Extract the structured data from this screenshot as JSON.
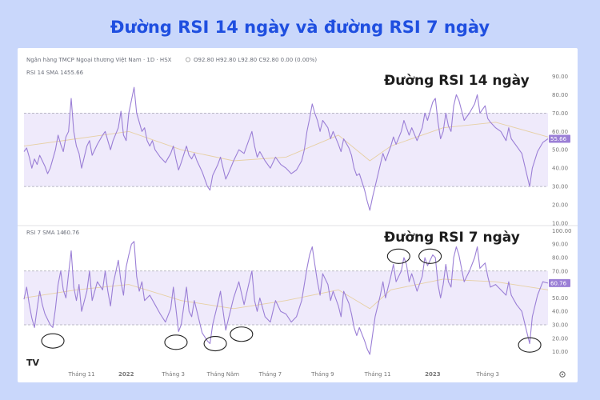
{
  "title": "Đường RSI 14 ngày và đường RSI 7 ngày",
  "header": {
    "symbol": "Ngân hàng TMCP Ngoại thương Việt Nam · 1D · HSX",
    "ohlc": "O92.80 H92.80 L92.80 C92.80 0.00 (0.00%)",
    "settings_icon": "gear-icon",
    "logo": "TV"
  },
  "accent": "#9b7fd6",
  "band_fill": "#efeafb",
  "chart_data": [
    {
      "type": "line",
      "panel_label": "RSI 14 SMA 14",
      "current_value_label": "55.66",
      "annotation": "Đường RSI 14 ngày",
      "ylim": [
        10,
        95
      ],
      "yticks": [
        "90.00",
        "80.00",
        "70.00",
        "60.00",
        "50.00",
        "40.00",
        "30.00",
        "20.00",
        "10.00"
      ],
      "band": [
        30,
        70
      ],
      "points": [
        [
          0,
          49
        ],
        [
          0.5,
          51
        ],
        [
          1,
          46
        ],
        [
          1.5,
          40
        ],
        [
          2,
          45
        ],
        [
          2.5,
          42
        ],
        [
          3,
          47
        ],
        [
          4,
          41
        ],
        [
          4.5,
          37
        ],
        [
          5,
          40
        ],
        [
          6,
          50
        ],
        [
          6.5,
          58
        ],
        [
          7,
          53
        ],
        [
          7.5,
          49
        ],
        [
          8,
          57
        ],
        [
          8.5,
          60
        ],
        [
          9,
          78
        ],
        [
          9.5,
          60
        ],
        [
          10,
          52
        ],
        [
          10.5,
          48
        ],
        [
          11,
          40
        ],
        [
          12,
          52
        ],
        [
          12.5,
          55
        ],
        [
          13,
          47
        ],
        [
          14,
          53
        ],
        [
          15,
          58
        ],
        [
          15.5,
          60
        ],
        [
          16,
          55
        ],
        [
          16.5,
          50
        ],
        [
          17,
          55
        ],
        [
          18,
          62
        ],
        [
          18.5,
          71
        ],
        [
          19,
          58
        ],
        [
          19.5,
          55
        ],
        [
          20,
          70
        ],
        [
          20.5,
          77
        ],
        [
          21,
          84
        ],
        [
          21.5,
          70
        ],
        [
          22,
          65
        ],
        [
          22.5,
          60
        ],
        [
          23,
          62
        ],
        [
          23.5,
          55
        ],
        [
          24,
          52
        ],
        [
          24.5,
          55
        ],
        [
          25,
          50
        ],
        [
          26,
          46
        ],
        [
          27,
          43
        ],
        [
          28,
          48
        ],
        [
          28.5,
          52
        ],
        [
          29,
          45
        ],
        [
          29.5,
          39
        ],
        [
          30,
          43
        ],
        [
          31,
          52
        ],
        [
          31.5,
          47
        ],
        [
          32,
          45
        ],
        [
          32.5,
          48
        ],
        [
          33,
          44
        ],
        [
          34,
          38
        ],
        [
          35,
          30
        ],
        [
          35.5,
          28
        ],
        [
          36,
          36
        ],
        [
          37,
          42
        ],
        [
          37.5,
          46
        ],
        [
          38,
          40
        ],
        [
          38.5,
          34
        ],
        [
          39,
          37
        ],
        [
          40,
          44
        ],
        [
          41,
          50
        ],
        [
          42,
          48
        ],
        [
          43,
          56
        ],
        [
          43.5,
          60
        ],
        [
          44,
          52
        ],
        [
          44.5,
          46
        ],
        [
          45,
          49
        ],
        [
          46,
          44
        ],
        [
          47,
          40
        ],
        [
          48,
          46
        ],
        [
          49,
          42
        ],
        [
          50,
          40
        ],
        [
          51,
          37
        ],
        [
          52,
          39
        ],
        [
          53,
          44
        ],
        [
          53.5,
          50
        ],
        [
          54,
          60
        ],
        [
          54.5,
          67
        ],
        [
          55,
          75
        ],
        [
          55.5,
          70
        ],
        [
          56,
          66
        ],
        [
          56.5,
          60
        ],
        [
          57,
          66
        ],
        [
          58,
          62
        ],
        [
          58.5,
          56
        ],
        [
          59,
          60
        ],
        [
          60,
          53
        ],
        [
          60.5,
          49
        ],
        [
          61,
          56
        ],
        [
          62,
          51
        ],
        [
          62.5,
          47
        ],
        [
          63,
          40
        ],
        [
          63.5,
          36
        ],
        [
          64,
          37
        ],
        [
          65,
          28
        ],
        [
          65.5,
          22
        ],
        [
          66,
          17
        ],
        [
          66.5,
          24
        ],
        [
          67,
          30
        ],
        [
          68,
          42
        ],
        [
          68.5,
          48
        ],
        [
          69,
          44
        ],
        [
          70,
          52
        ],
        [
          70.5,
          57
        ],
        [
          71,
          53
        ],
        [
          72,
          60
        ],
        [
          72.5,
          66
        ],
        [
          73,
          62
        ],
        [
          73.5,
          58
        ],
        [
          74,
          62
        ],
        [
          75,
          55
        ],
        [
          76,
          62
        ],
        [
          76.5,
          70
        ],
        [
          77,
          66
        ],
        [
          78,
          76
        ],
        [
          78.5,
          78
        ],
        [
          79,
          65
        ],
        [
          79.5,
          56
        ],
        [
          80,
          60
        ],
        [
          80.5,
          70
        ],
        [
          81,
          63
        ],
        [
          81.5,
          60
        ],
        [
          82,
          74
        ],
        [
          82.5,
          80
        ],
        [
          83,
          77
        ],
        [
          84,
          66
        ],
        [
          85,
          70
        ],
        [
          86,
          75
        ],
        [
          86.5,
          80
        ],
        [
          87,
          70
        ],
        [
          88,
          74
        ],
        [
          88.5,
          67
        ],
        [
          89,
          65
        ],
        [
          90,
          62
        ],
        [
          91,
          60
        ],
        [
          92,
          55
        ],
        [
          92.5,
          62
        ],
        [
          93,
          56
        ],
        [
          94,
          52
        ],
        [
          95,
          48
        ],
        [
          96,
          36
        ],
        [
          96.5,
          30
        ],
        [
          97,
          40
        ],
        [
          98,
          49
        ],
        [
          99,
          54
        ],
        [
          100,
          56
        ]
      ],
      "sma": [
        [
          0,
          52
        ],
        [
          10,
          56
        ],
        [
          20,
          60
        ],
        [
          30,
          50
        ],
        [
          40,
          44
        ],
        [
          50,
          46
        ],
        [
          60,
          58
        ],
        [
          66,
          44
        ],
        [
          70,
          52
        ],
        [
          80,
          62
        ],
        [
          90,
          65
        ],
        [
          100,
          57
        ]
      ]
    },
    {
      "type": "line",
      "panel_label": "RSI 7 SMA 14",
      "current_value_label": "60.76",
      "annotation": "Đường RSI 7 ngày",
      "ylim": [
        5,
        102
      ],
      "yticks": [
        "100.00",
        "90.00",
        "80.00",
        "70.00",
        "60.00",
        "50.00",
        "40.00",
        "30.00",
        "20.00",
        "10.00"
      ],
      "band": [
        30,
        70
      ],
      "points": [
        [
          0,
          49
        ],
        [
          0.5,
          58
        ],
        [
          1,
          45
        ],
        [
          1.5,
          35
        ],
        [
          2,
          28
        ],
        [
          2.5,
          42
        ],
        [
          3,
          55
        ],
        [
          3.5,
          45
        ],
        [
          4,
          38
        ],
        [
          5,
          30
        ],
        [
          5.5,
          28
        ],
        [
          6,
          42
        ],
        [
          6.5,
          60
        ],
        [
          7,
          70
        ],
        [
          7.5,
          56
        ],
        [
          8,
          50
        ],
        [
          8.5,
          68
        ],
        [
          9,
          85
        ],
        [
          9.5,
          58
        ],
        [
          10,
          48
        ],
        [
          10.5,
          60
        ],
        [
          11,
          40
        ],
        [
          12,
          55
        ],
        [
          12.5,
          70
        ],
        [
          13,
          48
        ],
        [
          14,
          62
        ],
        [
          15,
          56
        ],
        [
          15.5,
          70
        ],
        [
          16,
          55
        ],
        [
          16.5,
          44
        ],
        [
          17,
          60
        ],
        [
          18,
          78
        ],
        [
          18.5,
          62
        ],
        [
          19,
          52
        ],
        [
          19.5,
          73
        ],
        [
          20,
          82
        ],
        [
          20.5,
          90
        ],
        [
          21,
          92
        ],
        [
          21.5,
          66
        ],
        [
          22,
          55
        ],
        [
          22.5,
          62
        ],
        [
          23,
          48
        ],
        [
          24,
          52
        ],
        [
          25,
          45
        ],
        [
          26,
          38
        ],
        [
          27,
          32
        ],
        [
          28,
          42
        ],
        [
          28.5,
          58
        ],
        [
          29,
          42
        ],
        [
          29.5,
          25
        ],
        [
          30,
          30
        ],
        [
          31,
          58
        ],
        [
          31.5,
          40
        ],
        [
          32,
          36
        ],
        [
          32.5,
          48
        ],
        [
          33,
          40
        ],
        [
          34,
          24
        ],
        [
          35,
          18
        ],
        [
          35.5,
          16
        ],
        [
          36,
          30
        ],
        [
          37,
          46
        ],
        [
          37.5,
          55
        ],
        [
          38,
          40
        ],
        [
          38.5,
          26
        ],
        [
          39,
          34
        ],
        [
          40,
          50
        ],
        [
          41,
          62
        ],
        [
          42,
          45
        ],
        [
          43,
          62
        ],
        [
          43.5,
          70
        ],
        [
          44,
          48
        ],
        [
          44.5,
          40
        ],
        [
          45,
          50
        ],
        [
          46,
          36
        ],
        [
          47,
          32
        ],
        [
          48,
          48
        ],
        [
          49,
          40
        ],
        [
          50,
          38
        ],
        [
          51,
          32
        ],
        [
          52,
          36
        ],
        [
          53,
          48
        ],
        [
          53.5,
          60
        ],
        [
          54,
          72
        ],
        [
          54.5,
          82
        ],
        [
          55,
          88
        ],
        [
          55.5,
          75
        ],
        [
          56,
          62
        ],
        [
          56.5,
          52
        ],
        [
          57,
          68
        ],
        [
          58,
          60
        ],
        [
          58.5,
          48
        ],
        [
          59,
          55
        ],
        [
          60,
          44
        ],
        [
          60.5,
          36
        ],
        [
          61,
          55
        ],
        [
          62,
          46
        ],
        [
          62.5,
          38
        ],
        [
          63,
          28
        ],
        [
          63.5,
          22
        ],
        [
          64,
          28
        ],
        [
          65,
          18
        ],
        [
          65.5,
          12
        ],
        [
          66,
          8
        ],
        [
          66.5,
          22
        ],
        [
          67,
          36
        ],
        [
          68,
          52
        ],
        [
          68.5,
          62
        ],
        [
          69,
          50
        ],
        [
          70,
          66
        ],
        [
          70.5,
          75
        ],
        [
          71,
          62
        ],
        [
          72,
          70
        ],
        [
          72.5,
          80
        ],
        [
          73,
          75
        ],
        [
          73.5,
          62
        ],
        [
          74,
          68
        ],
        [
          75,
          55
        ],
        [
          76,
          66
        ],
        [
          76.5,
          80
        ],
        [
          77,
          74
        ],
        [
          78,
          82
        ],
        [
          78.5,
          80
        ],
        [
          79,
          60
        ],
        [
          79.5,
          50
        ],
        [
          80,
          60
        ],
        [
          80.5,
          75
        ],
        [
          81,
          62
        ],
        [
          81.5,
          58
        ],
        [
          82,
          80
        ],
        [
          82.5,
          88
        ],
        [
          83,
          82
        ],
        [
          84,
          62
        ],
        [
          85,
          70
        ],
        [
          86,
          80
        ],
        [
          86.5,
          88
        ],
        [
          87,
          72
        ],
        [
          88,
          76
        ],
        [
          88.5,
          66
        ],
        [
          89,
          58
        ],
        [
          90,
          60
        ],
        [
          91,
          56
        ],
        [
          92,
          52
        ],
        [
          92.5,
          62
        ],
        [
          93,
          52
        ],
        [
          94,
          45
        ],
        [
          95,
          40
        ],
        [
          96,
          24
        ],
        [
          96.5,
          16
        ],
        [
          97,
          36
        ],
        [
          98,
          52
        ],
        [
          99,
          62
        ],
        [
          100,
          61
        ]
      ],
      "sma": [
        [
          0,
          50
        ],
        [
          10,
          56
        ],
        [
          20,
          60
        ],
        [
          30,
          48
        ],
        [
          40,
          42
        ],
        [
          50,
          48
        ],
        [
          60,
          56
        ],
        [
          66,
          42
        ],
        [
          70,
          56
        ],
        [
          80,
          64
        ],
        [
          90,
          62
        ],
        [
          100,
          56
        ]
      ]
    }
  ],
  "x_axis": {
    "ticks": [
      {
        "t": 11.0,
        "label": "Tháng 11",
        "bold": false
      },
      {
        "t": 19.5,
        "label": "2022",
        "bold": true
      },
      {
        "t": 28.5,
        "label": "Tháng 3",
        "bold": false
      },
      {
        "t": 38.0,
        "label": "Tháng Năm",
        "bold": false
      },
      {
        "t": 47.0,
        "label": "Tháng 7",
        "bold": false
      },
      {
        "t": 57.0,
        "label": "Tháng 9",
        "bold": false
      },
      {
        "t": 67.5,
        "label": "Tháng 11",
        "bold": false
      },
      {
        "t": 78.0,
        "label": "2023",
        "bold": true
      },
      {
        "t": 88.5,
        "label": "Tháng 3",
        "bold": false
      }
    ]
  },
  "highlights": [
    {
      "t": 5.5,
      "v": 18
    },
    {
      "t": 29.0,
      "v": 17
    },
    {
      "t": 36.5,
      "v": 16
    },
    {
      "t": 41.5,
      "v": 23
    },
    {
      "t": 71.5,
      "v": 81
    },
    {
      "t": 77.5,
      "v": 81
    },
    {
      "t": 96.5,
      "v": 15
    }
  ]
}
